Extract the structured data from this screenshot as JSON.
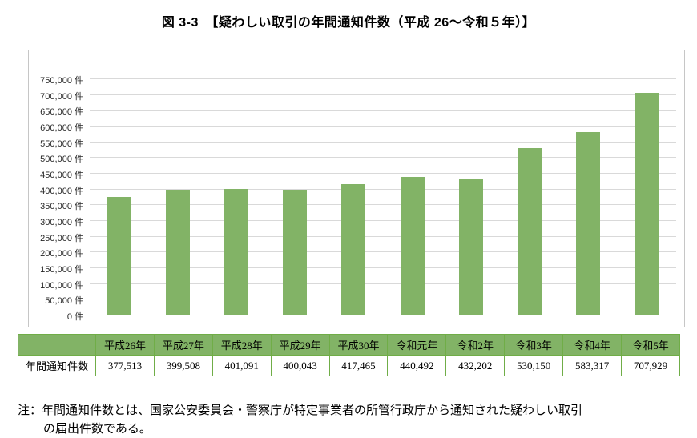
{
  "page": {
    "title": "図 3-3　【疑わしい取引の年間通知件数（平成 26～令和５年）】"
  },
  "chart_data": {
    "type": "bar",
    "title": "疑わしい取引の年間通知件数（平成26～令和5年）",
    "categories": [
      "平成26年",
      "平成27年",
      "平成28年",
      "平成29年",
      "平成30年",
      "令和元年",
      "令和2年",
      "令和3年",
      "令和4年",
      "令和5年"
    ],
    "values": [
      377513,
      399508,
      401091,
      400043,
      417465,
      440492,
      432202,
      530150,
      583317,
      707929
    ],
    "xlabel": "",
    "ylabel": "件",
    "ylim": [
      0,
      750000
    ],
    "ytick_step": 50000,
    "ytick_labels": [
      "0 件",
      "50,000 件",
      "100,000 件",
      "150,000 件",
      "200,000 件",
      "250,000 件",
      "300,000 件",
      "350,000 件",
      "400,000 件",
      "450,000 件",
      "500,000 件",
      "550,000 件",
      "600,000 件",
      "650,000 件",
      "700,000 件",
      "750,000 件"
    ],
    "grid": true,
    "legend": "none",
    "bar_color": "#82b366"
  },
  "table": {
    "row_header": "年間通知件数",
    "columns": [
      "平成26年",
      "平成27年",
      "平成28年",
      "平成29年",
      "平成30年",
      "令和元年",
      "令和2年",
      "令和3年",
      "令和4年",
      "令和5年"
    ],
    "values": [
      "377,513",
      "399,508",
      "401,091",
      "400,043",
      "417,465",
      "440,492",
      "432,202",
      "530,150",
      "583,317",
      "707,929"
    ]
  },
  "note": {
    "line1": "注：年間通知件数とは、国家公安委員会・警察庁が特定事業者の所管行政庁から通知された疑わしい取引",
    "line2": "の届出件数である。"
  }
}
